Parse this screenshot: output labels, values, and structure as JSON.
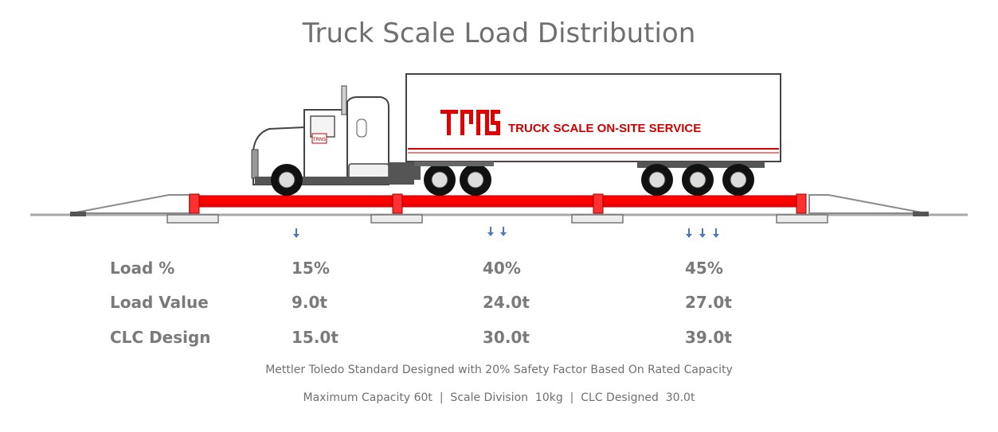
{
  "title": "Truck Scale Load Distribution",
  "trailer_brand": "TRUCK SCALE ON-SITE SERVICE",
  "colors": {
    "platform": "#ff0000",
    "arrow": "#4a78b8",
    "text": "#7a7a7a",
    "brand": "#e00000"
  },
  "arrows": {
    "section1": 1,
    "section2": 2,
    "section3": 3
  },
  "table": {
    "rows": [
      {
        "label": "Load %",
        "values": [
          "15%",
          "40%",
          "45%"
        ]
      },
      {
        "label": "Load Value",
        "values": [
          "9.0t",
          "24.0t",
          "27.0t"
        ]
      },
      {
        "label": "CLC Design",
        "values": [
          "15.0t",
          "30.0t",
          "39.0t"
        ]
      }
    ]
  },
  "notes": {
    "line1": "Mettler Toledo Standard Designed with 20% Safety Factor Based On Rated Capacity",
    "line2": "Maximum Capacity 60t  |  Scale Division  10kg  |  CLC Designed  30.0t"
  }
}
